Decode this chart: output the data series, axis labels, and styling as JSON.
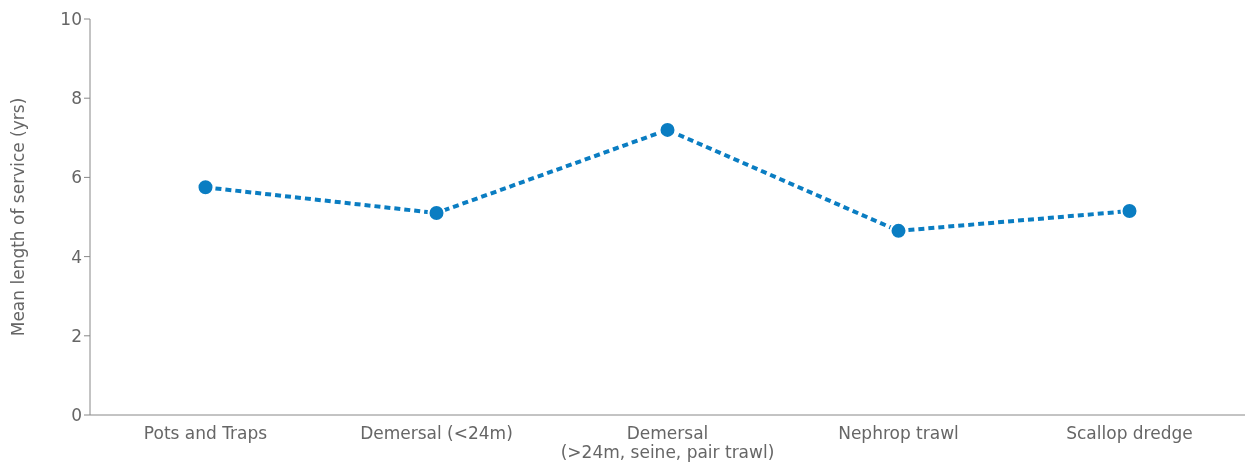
{
  "chart_data": {
    "type": "line",
    "ylabel": "Mean length of service (yrs)",
    "categories": [
      "Pots and Traps",
      "Demersal (<24m)",
      "Demersal\n(>24m, seine, pair trawl)",
      "Nephrop trawl",
      "Scallop dredge"
    ],
    "values": [
      5.75,
      5.1,
      7.2,
      4.65,
      5.15
    ],
    "color": "#0a7dc2",
    "ylim": [
      0,
      10
    ],
    "yticks": [
      0,
      2,
      4,
      6,
      8,
      10
    ],
    "grid": false,
    "marker": "circle",
    "line_style": "dashed"
  }
}
